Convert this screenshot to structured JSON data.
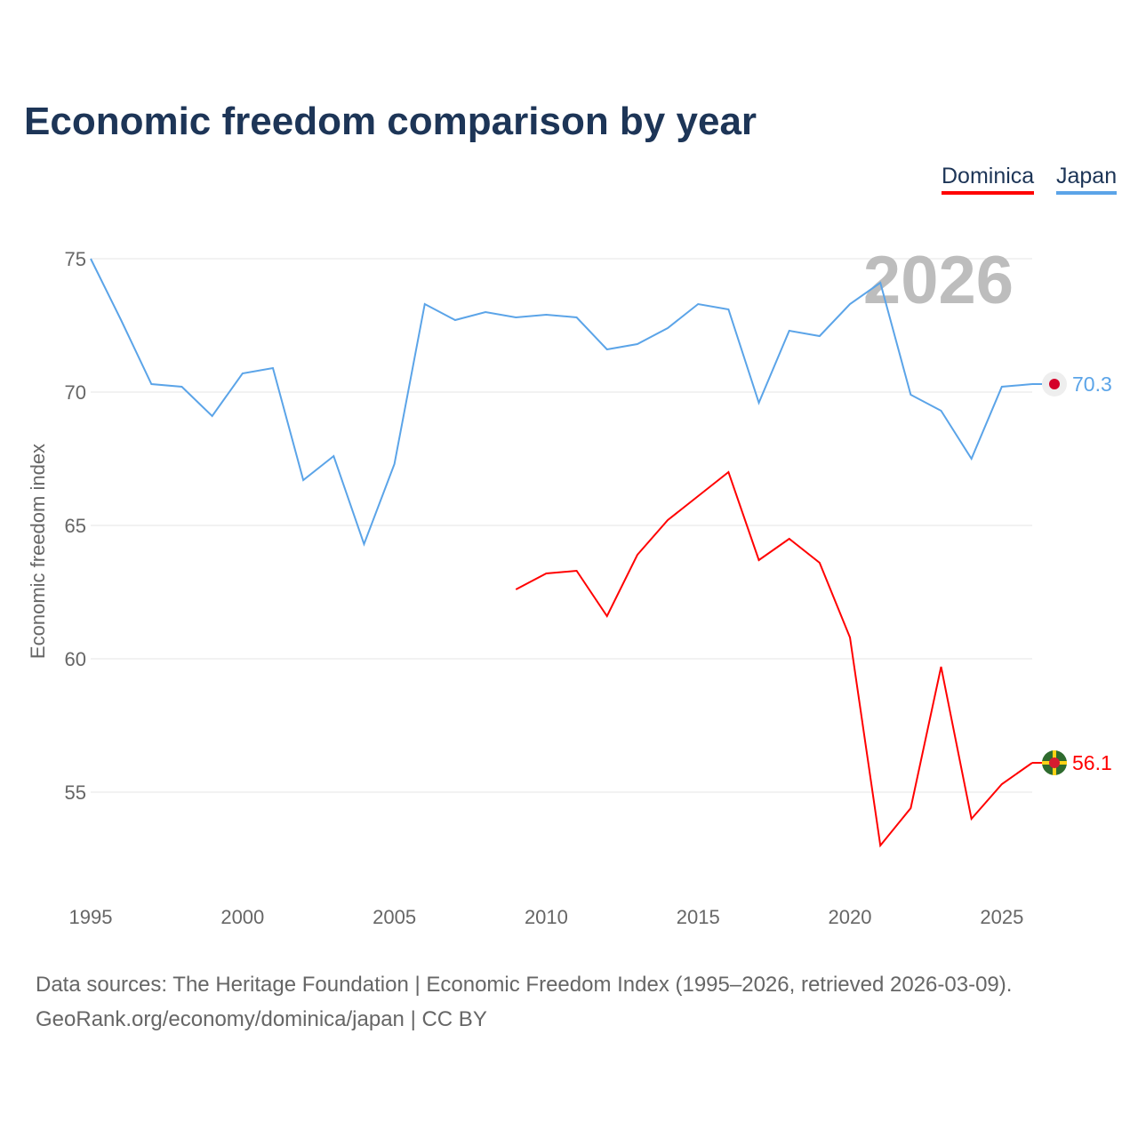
{
  "chart_data": {
    "type": "line",
    "title": "Economic freedom comparison by year",
    "xlabel": "",
    "ylabel": "Economic freedom index",
    "xlim": [
      1995,
      2026
    ],
    "ylim": [
      51,
      76
    ],
    "x_ticks": [
      "1995",
      "2000",
      "2005",
      "2010",
      "2015",
      "2020",
      "2025"
    ],
    "y_ticks": [
      "55",
      "60",
      "65",
      "70",
      "75"
    ],
    "grid": true,
    "legend_position": "top-right",
    "year_watermark": "2026",
    "series": [
      {
        "name": "Dominica",
        "color": "#ff0000",
        "end_label": "56.1",
        "x": [
          2009,
          2010,
          2011,
          2012,
          2013,
          2014,
          2015,
          2016,
          2017,
          2018,
          2019,
          2020,
          2021,
          2022,
          2023,
          2024,
          2025,
          2026
        ],
        "values": [
          62.6,
          63.2,
          63.3,
          61.6,
          63.9,
          65.2,
          66.1,
          67.0,
          63.7,
          64.5,
          63.6,
          60.8,
          53.0,
          54.4,
          59.7,
          54.0,
          55.3,
          56.1
        ]
      },
      {
        "name": "Japan",
        "color": "#5ba4e8",
        "end_label": "70.3",
        "x": [
          1995,
          1996,
          1997,
          1998,
          1999,
          2000,
          2001,
          2002,
          2003,
          2004,
          2005,
          2006,
          2007,
          2008,
          2009,
          2010,
          2011,
          2012,
          2013,
          2014,
          2015,
          2016,
          2017,
          2018,
          2019,
          2020,
          2021,
          2022,
          2023,
          2024,
          2025,
          2026
        ],
        "values": [
          75.0,
          72.7,
          70.3,
          70.2,
          69.1,
          70.7,
          70.9,
          66.7,
          67.6,
          64.3,
          67.3,
          73.3,
          72.7,
          73.0,
          72.8,
          72.9,
          72.8,
          71.6,
          71.8,
          72.4,
          73.3,
          73.1,
          69.6,
          72.3,
          72.1,
          73.3,
          74.1,
          69.9,
          69.3,
          67.5,
          70.2,
          70.3
        ]
      }
    ]
  },
  "footer": {
    "line1": "Data sources: The Heritage Foundation | Economic Freedom Index (1995–2026, retrieved 2026-03-09).",
    "line2": "GeoRank.org/economy/dominica/japan | CC BY"
  }
}
